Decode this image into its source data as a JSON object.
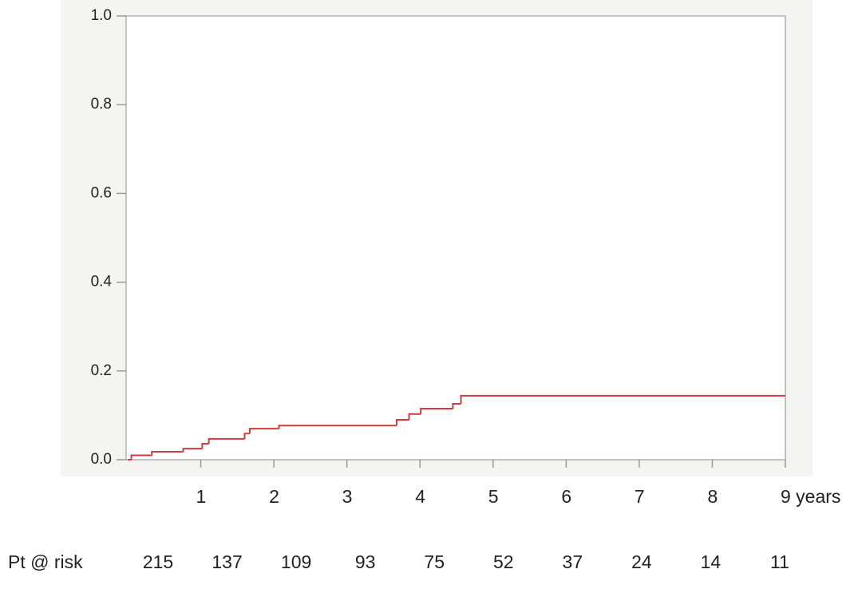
{
  "chart_data": {
    "type": "line",
    "step": true,
    "x": [
      0,
      0.05,
      0.33,
      0.76,
      1.02,
      1.11,
      1.6,
      1.67,
      2.07,
      3.68,
      3.85,
      4.01,
      4.45,
      4.56,
      9
    ],
    "series": [
      {
        "color": "#d03a40",
        "values": [
          0,
          0.01,
          0.018,
          0.025,
          0.036,
          0.047,
          0.059,
          0.07,
          0.077,
          0.09,
          0.103,
          0.115,
          0.126,
          0.144,
          0.144
        ]
      }
    ],
    "xlim": [
      0,
      9
    ],
    "xticks": [
      1,
      2,
      3,
      4,
      5,
      6,
      7,
      8,
      {
        "value": 9,
        "label": "9 years"
      }
    ],
    "ylim": [
      0,
      1
    ],
    "yticks": [
      {
        "value": 0,
        "label": "0.0"
      },
      0.2,
      0.4,
      0.6,
      0.8,
      {
        "value": 1,
        "label": "1.0"
      }
    ],
    "grid": false,
    "risk_table": {
      "label": "Pt @ risk",
      "values": [
        215,
        137,
        109,
        93,
        75,
        52,
        37,
        24,
        14,
        11
      ]
    }
  }
}
